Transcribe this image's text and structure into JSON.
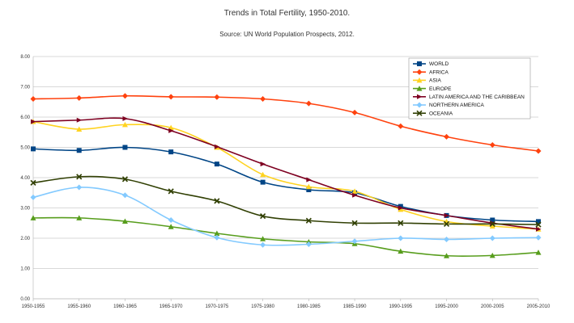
{
  "chart_data": {
    "type": "line",
    "title": "Trends in Total Fertility, 1950-2010.",
    "subtitle": "Source: UN World Population Prospects, 2012.",
    "xlabel": "",
    "ylabel": "",
    "ylim": [
      0,
      8
    ],
    "yticks": [
      "0.00",
      "1.00",
      "2.00",
      "3.00",
      "4.00",
      "5.00",
      "6.00",
      "7.00",
      "8.00"
    ],
    "categories": [
      "1950-1955",
      "1955-1960",
      "1960-1965",
      "1965-1970",
      "1970-1975",
      "1975-1980",
      "1980-1985",
      "1985-1990",
      "1990-1995",
      "1995-2000",
      "2000-2005",
      "2005-2010"
    ],
    "grid": "horizontal",
    "legend_position": "top-right",
    "series": [
      {
        "name": "WORLD",
        "color": "#004586",
        "marker": "square",
        "values": [
          4.95,
          4.9,
          5.0,
          4.85,
          4.45,
          3.85,
          3.6,
          3.5,
          3.05,
          2.75,
          2.6,
          2.55
        ]
      },
      {
        "name": "AFRICA",
        "color": "#ff420e",
        "marker": "diamond",
        "values": [
          6.6,
          6.63,
          6.7,
          6.67,
          6.66,
          6.6,
          6.45,
          6.15,
          5.7,
          5.35,
          5.08,
          4.88
        ]
      },
      {
        "name": "ASIA",
        "color": "#ffd320",
        "marker": "triangle",
        "values": [
          5.85,
          5.6,
          5.75,
          5.65,
          5.0,
          4.1,
          3.7,
          3.55,
          2.95,
          2.55,
          2.4,
          2.3
        ]
      },
      {
        "name": "EUROPE",
        "color": "#579d1c",
        "marker": "triangle",
        "values": [
          2.67,
          2.67,
          2.56,
          2.38,
          2.16,
          1.98,
          1.88,
          1.82,
          1.57,
          1.42,
          1.43,
          1.53
        ]
      },
      {
        "name": "LATIN AMERICA AND THE CARIBBEAN",
        "color": "#7e0021",
        "marker": "arrow",
        "values": [
          5.85,
          5.9,
          5.95,
          5.55,
          5.02,
          4.45,
          3.93,
          3.42,
          3.0,
          2.75,
          2.5,
          2.3
        ]
      },
      {
        "name": "NORTHERN AMERICA",
        "color": "#83caff",
        "marker": "diamond",
        "values": [
          3.35,
          3.68,
          3.42,
          2.6,
          2.02,
          1.78,
          1.8,
          1.9,
          2.0,
          1.96,
          2.0,
          2.02
        ]
      },
      {
        "name": "OCEANIA",
        "color": "#314004",
        "marker": "x",
        "values": [
          3.83,
          4.03,
          3.95,
          3.55,
          3.23,
          2.73,
          2.58,
          2.5,
          2.5,
          2.47,
          2.47,
          2.45
        ]
      }
    ]
  }
}
